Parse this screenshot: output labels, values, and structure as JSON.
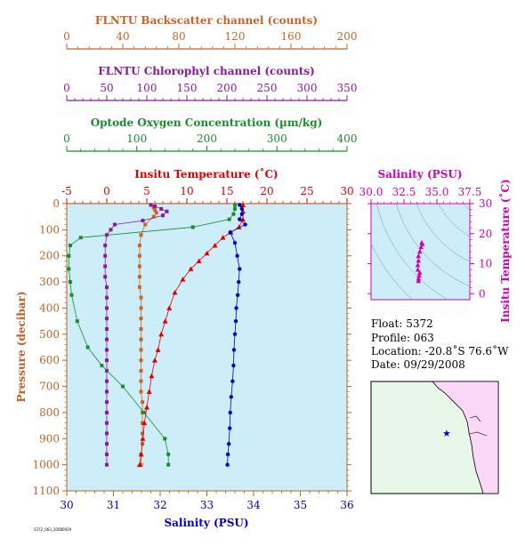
{
  "colors": {
    "backscatter": "#c8642a",
    "chlorophyll": "#8b1a9a",
    "oxygen": "#1a8c2e",
    "temperature": "#e00000",
    "salinity": "#0000cc",
    "pressure": "#b5652a",
    "ts_magenta": "#d400b0",
    "plot_bg": "#cdeef8",
    "map_ocean": "#e8f8e8",
    "map_land": "#fbd8f8"
  },
  "chart_data": [
    {
      "type": "line",
      "id": "profiles",
      "ylabel": "Pressure (decibar)",
      "y_ticks": [
        0,
        100,
        200,
        300,
        400,
        500,
        600,
        700,
        800,
        900,
        1000,
        1100
      ],
      "ylim": [
        0,
        1100
      ],
      "y_reversed": true,
      "axes": [
        {
          "key": "backscatter",
          "label": "FLNTU Backscatter channel (counts)",
          "xlim": [
            0,
            200
          ],
          "ticks": [
            0,
            40,
            80,
            120,
            160,
            200
          ],
          "position": "top"
        },
        {
          "key": "chlorophyll",
          "label": "FLNTU Chlorophyl channel (counts)",
          "xlim": [
            0,
            350
          ],
          "ticks": [
            0,
            50,
            100,
            150,
            200,
            250,
            300,
            350
          ],
          "position": "top"
        },
        {
          "key": "oxygen",
          "label": "Optode Oxygen Concentration (µm/kg)",
          "xlim": [
            0,
            400
          ],
          "ticks": [
            0,
            100,
            200,
            300,
            400
          ],
          "position": "top"
        },
        {
          "key": "temperature",
          "label": "Insitu Temperature (˚C)",
          "xlim": [
            -5,
            30
          ],
          "ticks": [
            -5,
            0,
            5,
            10,
            15,
            20,
            25,
            30
          ],
          "position": "top"
        },
        {
          "key": "salinity",
          "label": "Salinity (PSU)",
          "xlim": [
            30,
            36
          ],
          "ticks": [
            30,
            31,
            32,
            33,
            34,
            35,
            36
          ],
          "position": "bottom"
        }
      ],
      "series": [
        {
          "axis": "backscatter",
          "marker": "square",
          "points": [
            [
              60,
              5
            ],
            [
              62,
              15
            ],
            [
              63,
              25
            ],
            [
              64,
              35
            ],
            [
              62,
              50
            ],
            [
              56,
              80
            ],
            [
              53,
              120
            ],
            [
              52,
              160
            ],
            [
              52,
              200
            ],
            [
              52,
              240
            ],
            [
              52,
              280
            ],
            [
              52,
              320
            ],
            [
              53,
              360
            ],
            [
              53,
              400
            ],
            [
              53,
              440
            ],
            [
              53,
              480
            ],
            [
              53,
              520
            ],
            [
              53,
              560
            ],
            [
              53,
              600
            ],
            [
              53,
              640
            ],
            [
              53,
              680
            ],
            [
              53,
              720
            ],
            [
              54,
              760
            ],
            [
              54,
              800
            ],
            [
              54,
              840
            ],
            [
              54,
              880
            ],
            [
              54,
              920
            ],
            [
              53,
              960
            ],
            [
              53,
              1000
            ]
          ]
        },
        {
          "axis": "chlorophyll",
          "marker": "square",
          "points": [
            [
              105,
              5
            ],
            [
              110,
              10
            ],
            [
              118,
              20
            ],
            [
              125,
              30
            ],
            [
              120,
              45
            ],
            [
              95,
              65
            ],
            [
              60,
              80
            ],
            [
              55,
              100
            ],
            [
              50,
              120
            ],
            [
              48,
              160
            ],
            [
              48,
              200
            ],
            [
              48,
              240
            ],
            [
              48,
              280
            ],
            [
              50,
              320
            ],
            [
              50,
              360
            ],
            [
              50,
              400
            ],
            [
              50,
              440
            ],
            [
              50,
              480
            ],
            [
              50,
              520
            ],
            [
              50,
              560
            ],
            [
              50,
              600
            ],
            [
              50,
              640
            ],
            [
              50,
              680
            ],
            [
              50,
              720
            ],
            [
              50,
              760
            ],
            [
              50,
              800
            ],
            [
              50,
              840
            ],
            [
              50,
              880
            ],
            [
              50,
              920
            ],
            [
              50,
              960
            ],
            [
              50,
              1000
            ]
          ]
        },
        {
          "axis": "oxygen",
          "marker": "square",
          "points": [
            [
              240,
              5
            ],
            [
              240,
              20
            ],
            [
              238,
              40
            ],
            [
              232,
              60
            ],
            [
              180,
              90
            ],
            [
              20,
              130
            ],
            [
              5,
              160
            ],
            [
              3,
              200
            ],
            [
              3,
              250
            ],
            [
              5,
              300
            ],
            [
              7,
              350
            ],
            [
              15,
              450
            ],
            [
              30,
              550
            ],
            [
              50,
              620
            ],
            [
              80,
              700
            ],
            [
              110,
              800
            ],
            [
              140,
              900
            ],
            [
              145,
              960
            ],
            [
              145,
              1000
            ]
          ]
        },
        {
          "axis": "temperature",
          "marker": "triangle",
          "points": [
            [
              17,
              5
            ],
            [
              17,
              30
            ],
            [
              17,
              60
            ],
            [
              16.5,
              90
            ],
            [
              15.5,
              110
            ],
            [
              14.5,
              130
            ],
            [
              13.5,
              160
            ],
            [
              12.5,
              190
            ],
            [
              11.5,
              220
            ],
            [
              10.5,
              250
            ],
            [
              9.5,
              290
            ],
            [
              8.5,
              340
            ],
            [
              7.8,
              400
            ],
            [
              7.3,
              450
            ],
            [
              6.8,
              500
            ],
            [
              6.4,
              560
            ],
            [
              6.0,
              600
            ],
            [
              5.6,
              660
            ],
            [
              5.3,
              720
            ],
            [
              5.0,
              780
            ],
            [
              4.7,
              840
            ],
            [
              4.5,
              900
            ],
            [
              4.3,
              960
            ],
            [
              4.1,
              1000
            ]
          ]
        },
        {
          "axis": "salinity",
          "marker": "dot",
          "points": [
            [
              33.7,
              5
            ],
            [
              33.75,
              20
            ],
            [
              33.75,
              40
            ],
            [
              33.7,
              60
            ],
            [
              33.82,
              80
            ],
            [
              33.5,
              110
            ],
            [
              33.6,
              150
            ],
            [
              33.65,
              200
            ],
            [
              33.7,
              250
            ],
            [
              33.68,
              300
            ],
            [
              33.66,
              350
            ],
            [
              33.63,
              400
            ],
            [
              33.62,
              450
            ],
            [
              33.6,
              500
            ],
            [
              33.58,
              560
            ],
            [
              33.57,
              620
            ],
            [
              33.55,
              680
            ],
            [
              33.52,
              740
            ],
            [
              33.5,
              800
            ],
            [
              33.49,
              860
            ],
            [
              33.47,
              920
            ],
            [
              33.45,
              960
            ],
            [
              33.44,
              1000
            ]
          ]
        }
      ]
    },
    {
      "type": "scatter",
      "id": "ts_diagram",
      "xlabel": "Salinity (PSU)",
      "ylabel": "Insitu Temperature (˚C)",
      "xlim": [
        30,
        37.5
      ],
      "ylim": [
        -2,
        30
      ],
      "x_ticks": [
        30.0,
        32.5,
        35.0,
        37.5
      ],
      "x_tick_labels": [
        "30.0",
        "32.5",
        "35.0",
        "37.5"
      ],
      "y_ticks": [
        0,
        10,
        20,
        30
      ],
      "points": [
        [
          33.6,
          4.2
        ],
        [
          33.6,
          5.0
        ],
        [
          33.65,
          6.0
        ],
        [
          33.7,
          7.0
        ],
        [
          33.55,
          8.0
        ],
        [
          33.55,
          9.5
        ],
        [
          33.6,
          11.0
        ],
        [
          33.6,
          12.5
        ],
        [
          33.7,
          14.0
        ],
        [
          33.8,
          15.5
        ],
        [
          33.9,
          16.5
        ],
        [
          33.85,
          17.0
        ]
      ]
    }
  ],
  "info": {
    "float": "Float:  5372",
    "profile": "Profile:  063",
    "location": "Location:  -20.8˚S  76.6˚W",
    "date": "Date:  09/29/2008"
  },
  "footer": "5372_063_20080929"
}
